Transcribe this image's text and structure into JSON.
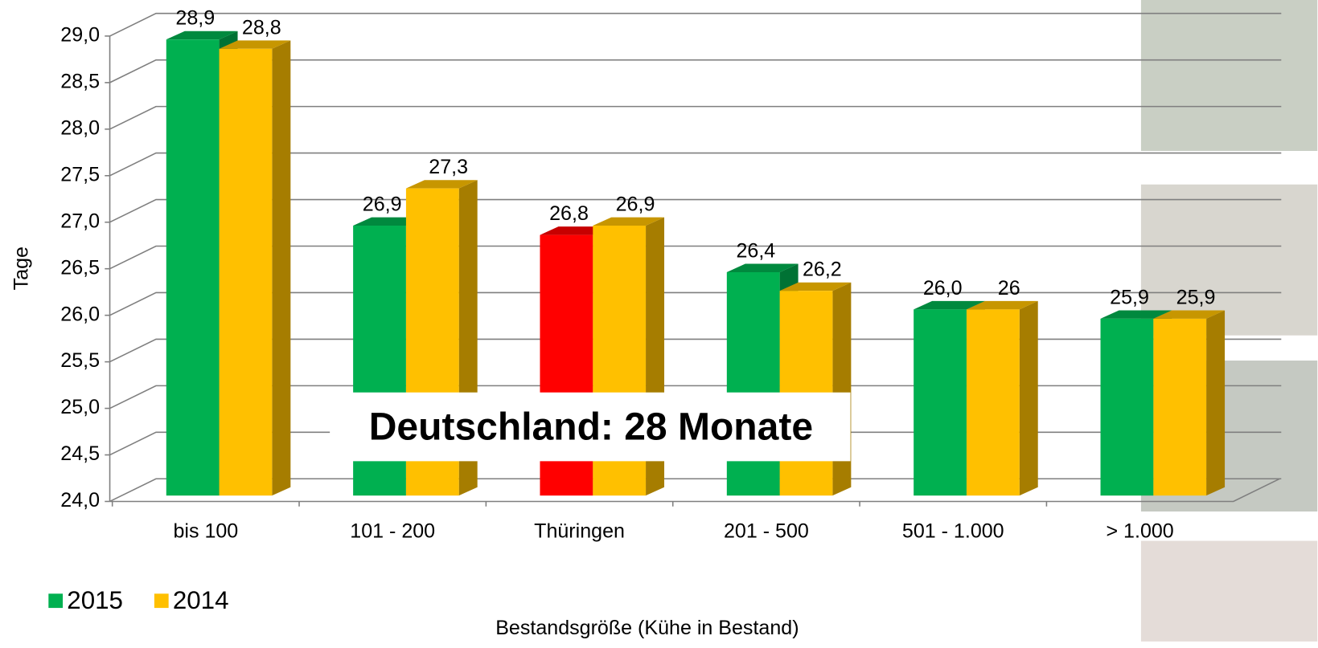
{
  "chart_data": {
    "type": "bar3d",
    "y_label": "Tage",
    "x_label": "Bestandsgröße (Kühe in Bestand)",
    "annotation": "Deutschland: 28 Monate",
    "categories": [
      "bis 100",
      "101 - 200",
      "Thüringen",
      "201 - 500",
      "501 - 1.000",
      "> 1.000"
    ],
    "series": [
      {
        "name": "2015",
        "color": "#00b050",
        "colors": [
          "#00b050",
          "#00b050",
          "#ff0000",
          "#00b050",
          "#00b050",
          "#00b050"
        ],
        "values": [
          28.9,
          26.9,
          26.8,
          26.4,
          26.0,
          25.9
        ],
        "value_labels": [
          "28,9",
          "26,9",
          "26,8",
          "26,4",
          "26,0",
          "25,9"
        ]
      },
      {
        "name": "2014",
        "color": "#ffc000",
        "values": [
          28.8,
          27.3,
          26.9,
          26.2,
          26,
          25.9
        ],
        "value_labels": [
          "28,8",
          "27,3",
          "26,9",
          "26,2",
          "26",
          "25,9"
        ]
      }
    ],
    "ylim": [
      24,
      29
    ],
    "yticks": [
      {
        "value": 24,
        "label": "24,0"
      },
      {
        "value": 24.5,
        "label": "24,5"
      },
      {
        "value": 25,
        "label": "25,0"
      },
      {
        "value": 25.5,
        "label": "25,5"
      },
      {
        "value": 26,
        "label": "26,0"
      },
      {
        "value": 26.5,
        "label": "26,5"
      },
      {
        "value": 27,
        "label": "27,0"
      },
      {
        "value": 27.5,
        "label": "27,5"
      },
      {
        "value": 28,
        "label": "28,0"
      },
      {
        "value": 28.5,
        "label": "28,5"
      },
      {
        "value": 29,
        "label": "29,0"
      }
    ],
    "grid": true,
    "legend": "bottom-left"
  }
}
